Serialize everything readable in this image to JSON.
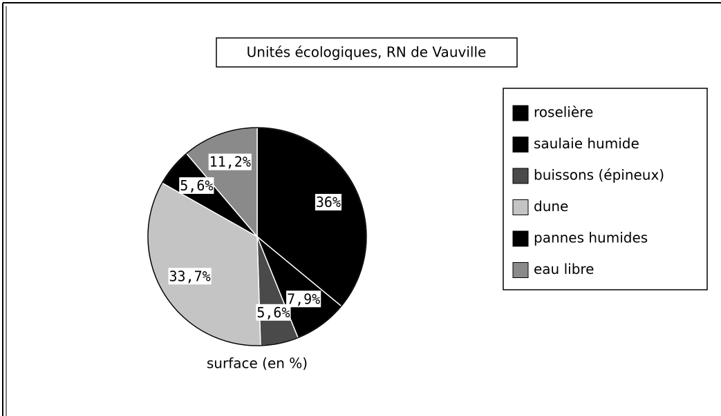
{
  "chart_data": {
    "type": "pie",
    "title": "Unités écologiques, RN de Vauville",
    "xlabel": "surface (en %)",
    "categories": [
      "roselière",
      "saulaie humide",
      "buissons (épineux)",
      "dune",
      "pannes humides",
      "eau libre"
    ],
    "values": [
      36,
      7.9,
      5.6,
      33.7,
      5.6,
      11.2
    ],
    "value_labels": [
      "36%",
      "7,9%",
      "5,6%",
      "33,7%",
      "5,6%",
      "11,2%"
    ],
    "colors": [
      "#000000",
      "#000000",
      "#4a4a4a",
      "#c4c4c4",
      "#000000",
      "#8a8a8a"
    ],
    "legend": "right"
  }
}
